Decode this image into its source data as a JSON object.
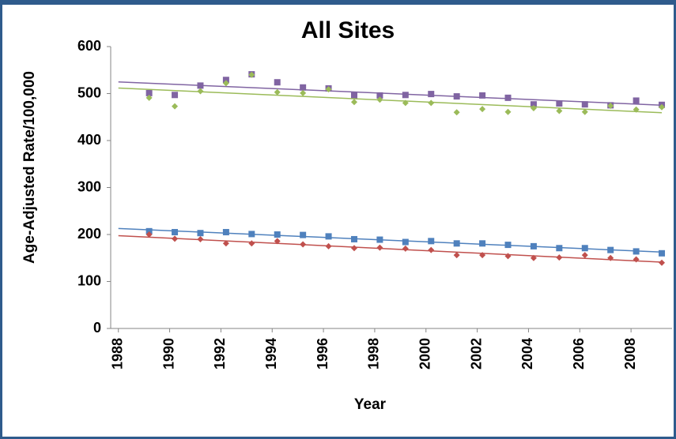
{
  "chart_data": {
    "type": "scatter",
    "title": "All Sites",
    "x_label": "Year",
    "y_label": "Age-Adjusted Rate/100,000",
    "x": [
      1989.2,
      1990.2,
      1991.2,
      1992.2,
      1993.2,
      1994.2,
      1995.2,
      1996.2,
      1997.2,
      1998.2,
      1999.2,
      2000.2,
      2001.2,
      2002.2,
      2003.2,
      2004.2,
      2005.2,
      2006.2,
      2007.2,
      2008.2,
      2009.2
    ],
    "series": [
      {
        "color": "#8064a2",
        "marker": "square",
        "trendline": "linear",
        "values": [
          501,
          497,
          517,
          529,
          541,
          524,
          513,
          511,
          496,
          496,
          497,
          499,
          494,
          496,
          491,
          477,
          479,
          477,
          475,
          485,
          476
        ]
      },
      {
        "color": "#9bbb59",
        "marker": "diamond",
        "trendline": "linear",
        "values": [
          491,
          473,
          505,
          522,
          540,
          503,
          501,
          509,
          482,
          487,
          480,
          480,
          460,
          467,
          461,
          469,
          463,
          461,
          474,
          466,
          471
        ]
      },
      {
        "color": "#4f81bd",
        "marker": "square",
        "trendline": "linear",
        "values": [
          207,
          205,
          203,
          205,
          201,
          200,
          199,
          196,
          190,
          189,
          184,
          186,
          181,
          181,
          178,
          175,
          171,
          171,
          167,
          164,
          160
        ]
      },
      {
        "color": "#c0504d",
        "marker": "diamond",
        "trendline": "linear",
        "values": [
          200,
          191,
          190,
          181,
          181,
          186,
          179,
          175,
          171,
          172,
          170,
          167,
          156,
          156,
          154,
          150,
          151,
          156,
          150,
          147,
          140
        ]
      }
    ],
    "xlim": [
      1987.7,
      2009.6
    ],
    "xticks": [
      1988,
      1990,
      1992,
      1994,
      1996,
      1998,
      2000,
      2002,
      2004,
      2006,
      2008
    ],
    "ylim": [
      0,
      600
    ],
    "yticks": [
      0,
      100,
      200,
      300,
      400,
      500,
      600
    ],
    "grid": false
  }
}
